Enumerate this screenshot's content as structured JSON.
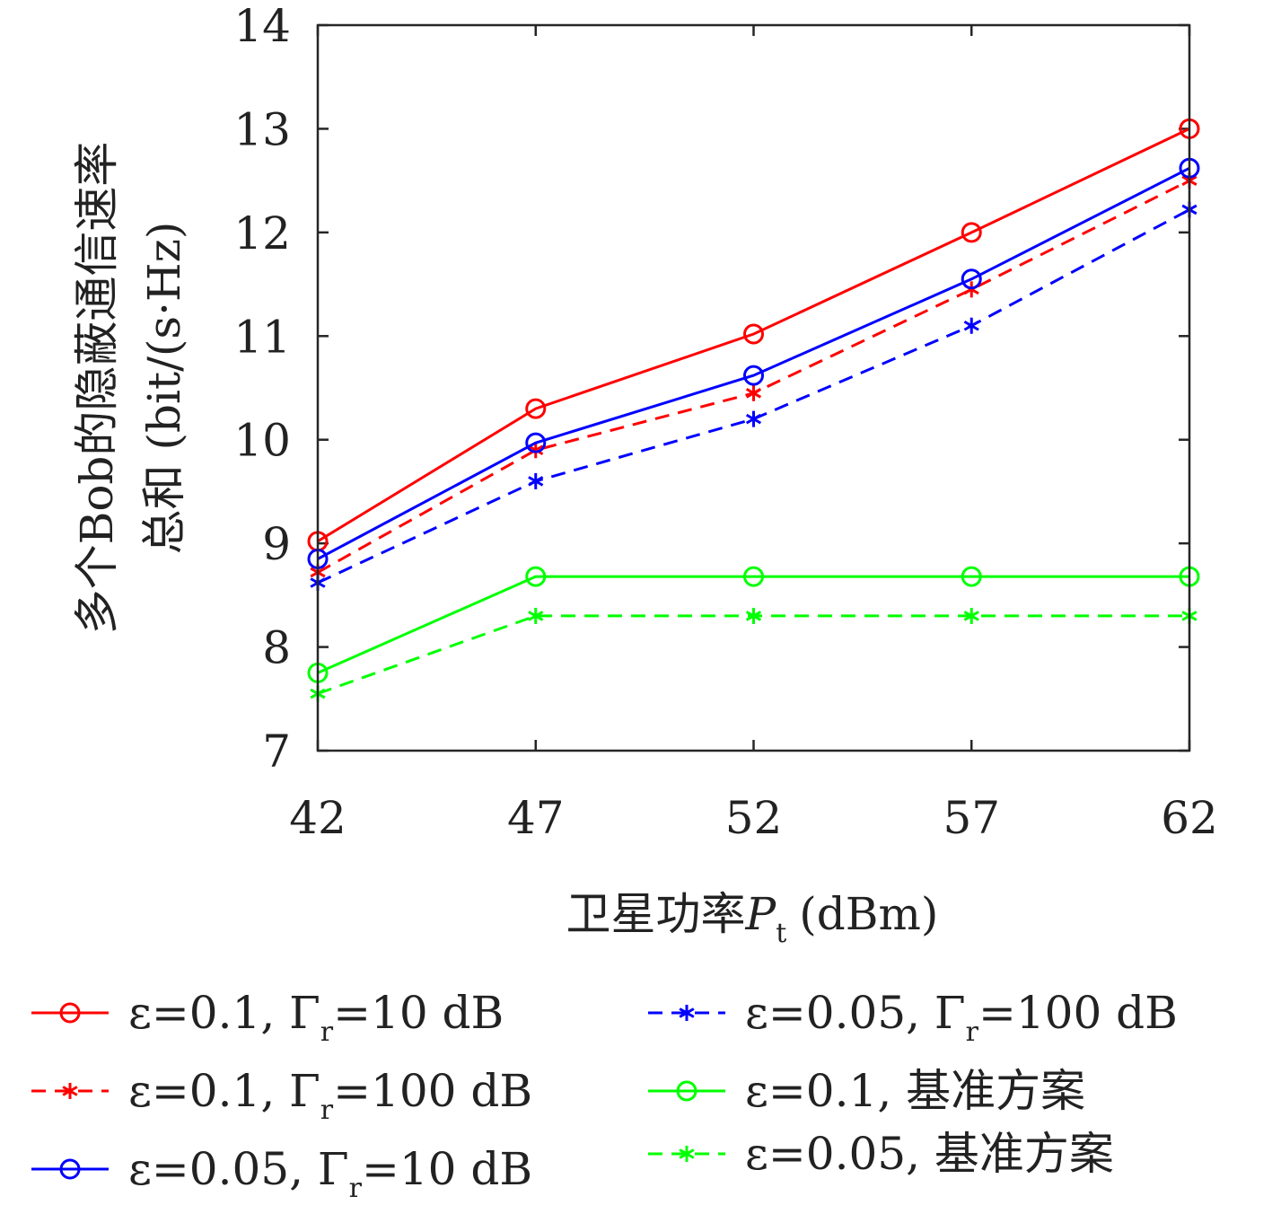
{
  "chart_data": {
    "type": "line",
    "xlabel": "卫星功率P_t (dBm)",
    "ylabel": "多个Bob的隐蔽通信速率总和 (bit/(s·Hz)",
    "ylabel_line1": "多个Bob的隐蔽通信速率",
    "ylabel_line2": "总和 (bit/(s·Hz)",
    "xlabel_text": "卫星功率",
    "xlabel_var": "P",
    "xlabel_sub": "t",
    "xlabel_unit": "(dBm)",
    "x": [
      42,
      47,
      52,
      57,
      62
    ],
    "x_tick_labels": [
      "42",
      "47",
      "52",
      "57",
      "62"
    ],
    "y_ticks": [
      7,
      8,
      9,
      10,
      11,
      12,
      13,
      14
    ],
    "y_tick_labels": [
      "7",
      "8",
      "9",
      "10",
      "11",
      "12",
      "13",
      "14"
    ],
    "xlim": [
      42,
      62
    ],
    "ylim": [
      7,
      14
    ],
    "grid": false,
    "legend_position": "bottom",
    "series": [
      {
        "name": "ε=0.1, Γr=10 dB",
        "label_main": "ε=0.1, Γ",
        "label_sub": "r",
        "label_tail": "=10 dB",
        "color": "#ff0000",
        "dash": "solid",
        "marker": "circle",
        "values": [
          9.02,
          10.3,
          11.02,
          12.0,
          13.0
        ]
      },
      {
        "name": "ε=0.1, Γr=100 dB",
        "label_main": "ε=0.1, Γ",
        "label_sub": "r",
        "label_tail": "=100 dB",
        "color": "#ff0000",
        "dash": "dashed",
        "marker": "star",
        "values": [
          8.72,
          9.9,
          10.45,
          11.45,
          12.5
        ]
      },
      {
        "name": "ε=0.05, Γr=10 dB",
        "label_main": "ε=0.05, Γ",
        "label_sub": "r",
        "label_tail": "=10 dB",
        "color": "#0000ff",
        "dash": "solid",
        "marker": "circle",
        "values": [
          8.85,
          9.97,
          10.62,
          11.55,
          12.62
        ]
      },
      {
        "name": "ε=0.05, Γr=100 dB",
        "label_main": "ε=0.05, Γ",
        "label_sub": "r",
        "label_tail": "=100 dB",
        "color": "#0000ff",
        "dash": "dashed",
        "marker": "star",
        "values": [
          8.62,
          9.6,
          10.2,
          11.1,
          12.22
        ]
      },
      {
        "name": "ε=0.1, 基准方案",
        "label_main": "ε=0.1, 基准方案",
        "label_sub": "",
        "label_tail": "",
        "color": "#00ff00",
        "dash": "solid",
        "marker": "circle",
        "values": [
          7.75,
          8.68,
          8.68,
          8.68,
          8.68
        ]
      },
      {
        "name": "ε=0.05, 基准方案",
        "label_main": "ε=0.05, 基准方案",
        "label_sub": "",
        "label_tail": "",
        "color": "#00ff00",
        "dash": "dashed",
        "marker": "star",
        "values": [
          7.55,
          8.3,
          8.3,
          8.3,
          8.3
        ]
      }
    ]
  }
}
